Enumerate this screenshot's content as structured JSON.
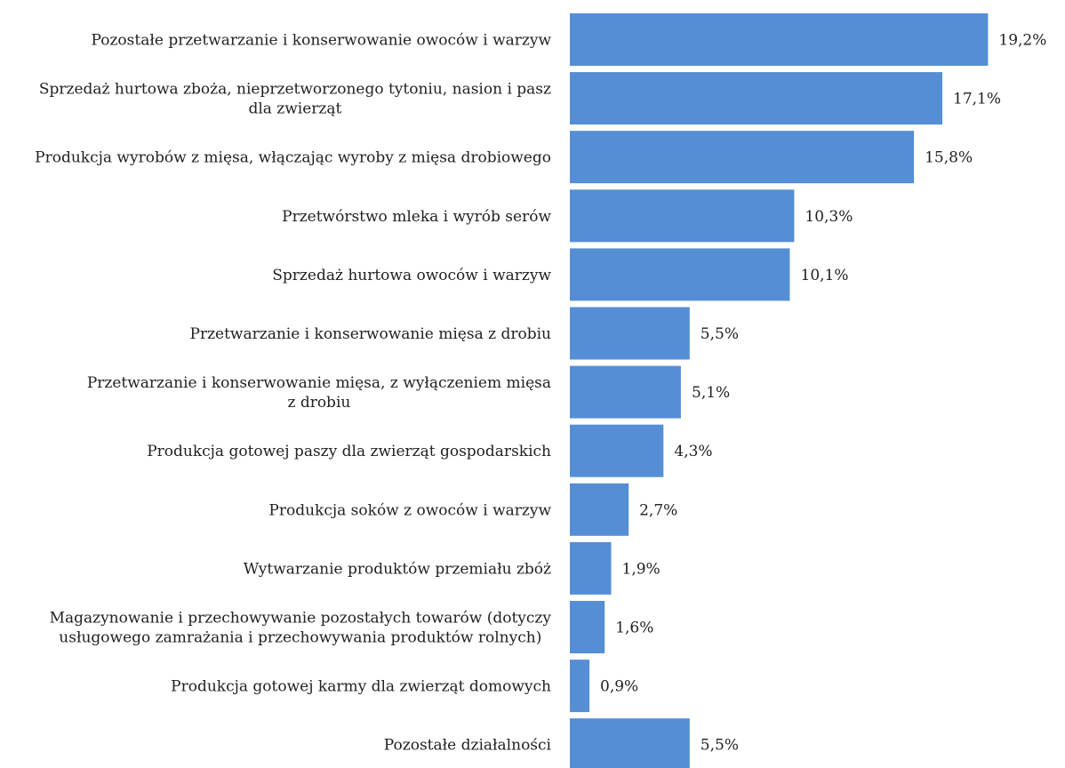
{
  "chart_data": {
    "type": "bar",
    "orientation": "horizontal",
    "title": "",
    "xlabel": "",
    "ylabel": "",
    "grid": false,
    "legend": "none",
    "bar_color": "#558ed5",
    "value_suffix": "%",
    "decimal_separator": ",",
    "categories": [
      "Pozostałe przetwarzanie i konserwowanie owoców i warzyw",
      "Sprzedaż hurtowa zboża, nieprzetworzonego tytoniu, nasion i pasz dla zwierząt",
      "Produkcja wyrobów z mięsa, włączając wyroby z mięsa drobiowego",
      "Przetwórstwo mleka i wyrób serów",
      "Sprzedaż hurtowa owoców i warzyw",
      "Przetwarzanie i konserwowanie mięsa z drobiu",
      "Przetwarzanie i konserwowanie mięsa, z wyłączeniem mięsa z drobiu",
      "Produkcja gotowej paszy dla zwierząt gospodarskich",
      "Produkcja soków z owoców i warzyw",
      "Wytwarzanie produktów przemiału zbóż",
      "Magazynowanie i przechowywanie pozostałych towarów (dotyczy usługowego zamrażania i przechowywania produktów rolnych)",
      "Produkcja gotowej karmy dla zwierząt domowych",
      "Pozostałe działalności"
    ],
    "category_lines": [
      [
        "Pozostałe przetwarzanie i konserwowanie owoców i warzyw"
      ],
      [
        "Sprzedaż hurtowa zboża, nieprzetworzonego tytoniu, nasion i pasz",
        "dla zwierząt"
      ],
      [
        "Produkcja wyrobów z mięsa, włączając wyroby z mięsa drobiowego"
      ],
      [
        "Przetwórstwo mleka i wyrób serów"
      ],
      [
        "Sprzedaż hurtowa owoców i warzyw"
      ],
      [
        "Przetwarzanie i konserwowanie mięsa z drobiu"
      ],
      [
        "Przetwarzanie i konserwowanie mięsa, z wyłączeniem mięsa",
        "z drobiu"
      ],
      [
        "Produkcja gotowej paszy dla zwierząt gospodarskich"
      ],
      [
        "Produkcja soków z owoców i warzyw"
      ],
      [
        "Wytwarzanie produktów przemiału zbóż"
      ],
      [
        "Magazynowanie i przechowywanie pozostałych towarów (dotyczy",
        "usługowego zamrażania i przechowywania produktów rolnych)"
      ],
      [
        "Produkcja gotowej karmy dla zwierząt domowych"
      ],
      [
        "Pozostałe działalności"
      ]
    ],
    "values": [
      19.2,
      17.1,
      15.8,
      10.3,
      10.1,
      5.5,
      5.1,
      4.3,
      2.7,
      1.9,
      1.6,
      0.9,
      5.5
    ],
    "value_labels": [
      "19,2%",
      "17,1%",
      "15,8%",
      "10,3%",
      "10,1%",
      "5,5%",
      "5,1%",
      "4,3%",
      "2,7%",
      "1,9%",
      "1,6%",
      "0,9%",
      "5,5%"
    ]
  }
}
